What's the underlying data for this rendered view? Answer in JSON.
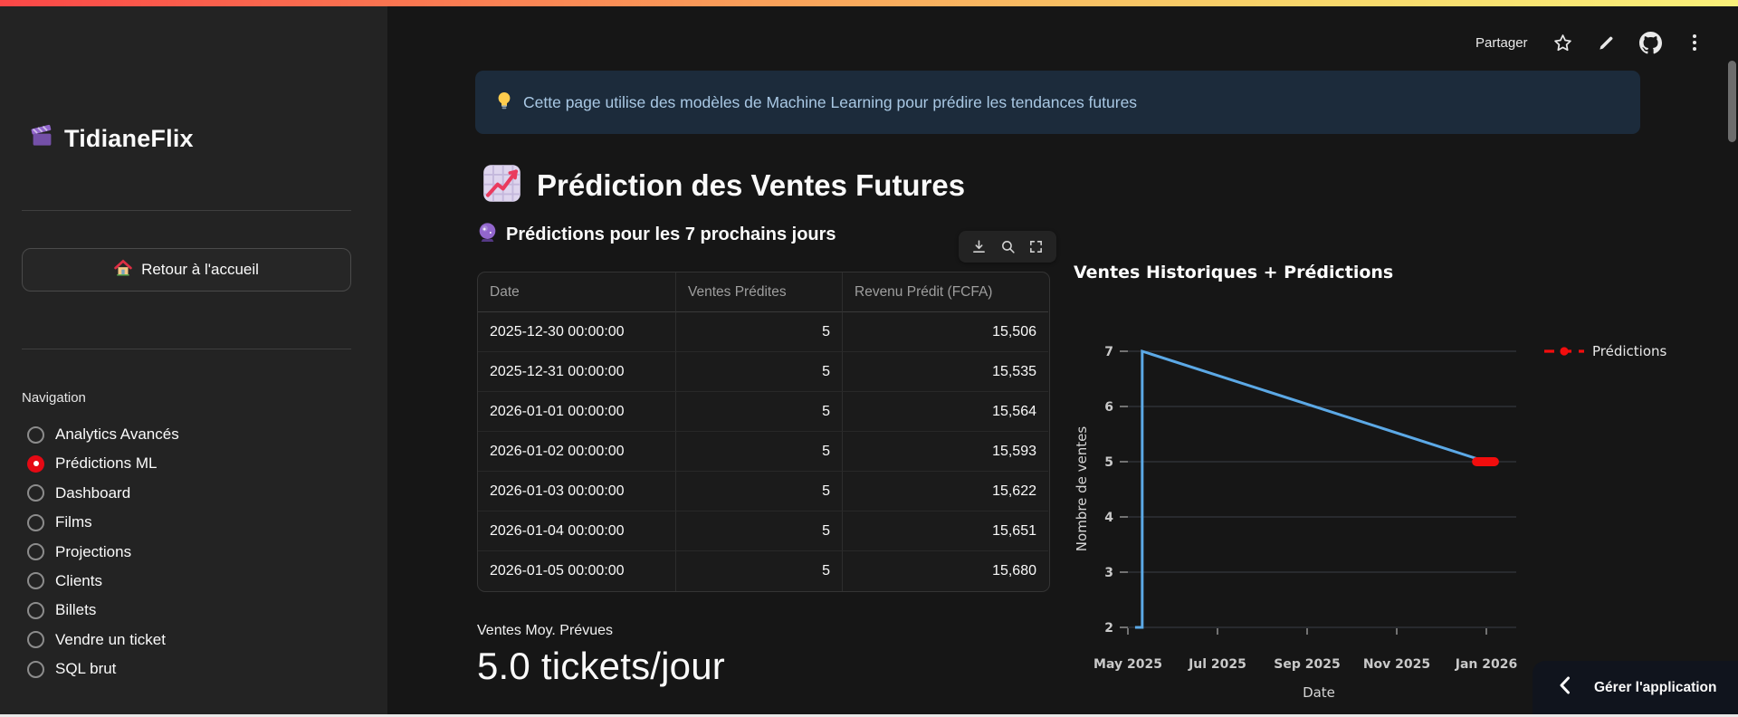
{
  "app": {
    "decoration_gradient": [
      "#fb4747",
      "#f9a25a",
      "#f9f07a"
    ],
    "accent_red": "#e50914",
    "sidebar_bg": "#232323",
    "main_bg": "#161616",
    "info_bg": "#1c2b3b",
    "info_text_color": "#a9c8e4"
  },
  "header": {
    "share_label": "Partager",
    "icons": [
      "star-icon",
      "pencil-icon",
      "github-icon",
      "more-vertical-icon"
    ]
  },
  "sidebar": {
    "title": "TidianeFlix",
    "home_button_label": "Retour à l'accueil",
    "nav_label": "Navigation",
    "items": [
      {
        "label": "Analytics Avancés",
        "selected": false
      },
      {
        "label": "Prédictions ML",
        "selected": true
      },
      {
        "label": "Dashboard",
        "selected": false
      },
      {
        "label": "Films",
        "selected": false
      },
      {
        "label": "Projections",
        "selected": false
      },
      {
        "label": "Clients",
        "selected": false
      },
      {
        "label": "Billets",
        "selected": false
      },
      {
        "label": "Vendre un ticket",
        "selected": false
      },
      {
        "label": "SQL brut",
        "selected": false
      }
    ]
  },
  "main": {
    "info_banner": "Cette page utilise des modèles de Machine Learning pour prédire les tendances futures",
    "page_title": "Prédiction des Ventes Futures",
    "section_title": "Prédictions pour les 7 prochains jours",
    "dataframe_toolbar_icons": [
      "download-icon",
      "search-icon",
      "fullscreen-icon"
    ],
    "table": {
      "columns": [
        "Date",
        "Ventes Prédites",
        "Revenu Prédit (FCFA)"
      ],
      "rows": [
        [
          "2025-12-30 00:00:00",
          "5",
          "15,506"
        ],
        [
          "2025-12-31 00:00:00",
          "5",
          "15,535"
        ],
        [
          "2026-01-01 00:00:00",
          "5",
          "15,564"
        ],
        [
          "2026-01-02 00:00:00",
          "5",
          "15,593"
        ],
        [
          "2026-01-03 00:00:00",
          "5",
          "15,622"
        ],
        [
          "2026-01-04 00:00:00",
          "5",
          "15,651"
        ],
        [
          "2026-01-05 00:00:00",
          "5",
          "15,680"
        ]
      ]
    },
    "metric": {
      "label": "Ventes Moy. Prévues",
      "value": "5.0 tickets/jour"
    },
    "manage_app_label": "Gérer l'application"
  },
  "chart_data": {
    "type": "line",
    "title": "Ventes Historiques + Prédictions",
    "xlabel": "Date",
    "ylabel": "Nombre de ventes",
    "x_ticks": [
      "May 2025",
      "Jul 2025",
      "Sep 2025",
      "Nov 2025",
      "Jan 2026"
    ],
    "y_ticks": [
      2,
      3,
      4,
      5,
      6,
      7
    ],
    "ylim": [
      2,
      7
    ],
    "grid": true,
    "legend_position": "right",
    "series": [
      {
        "name": "Ventes Historiques",
        "color": "#5ca9e6",
        "width": 3,
        "x": [
          0.08,
          0.16,
          0.16,
          4.0
        ],
        "y": [
          2,
          2,
          7,
          5
        ]
      },
      {
        "name": "Prédictions",
        "color": "#f20d0d",
        "width": 10,
        "marker": true,
        "x": [
          3.89,
          4.09
        ],
        "y": [
          5,
          5
        ]
      }
    ],
    "legend": [
      {
        "label": "Prédictions",
        "color": "#f20d0d"
      }
    ]
  }
}
